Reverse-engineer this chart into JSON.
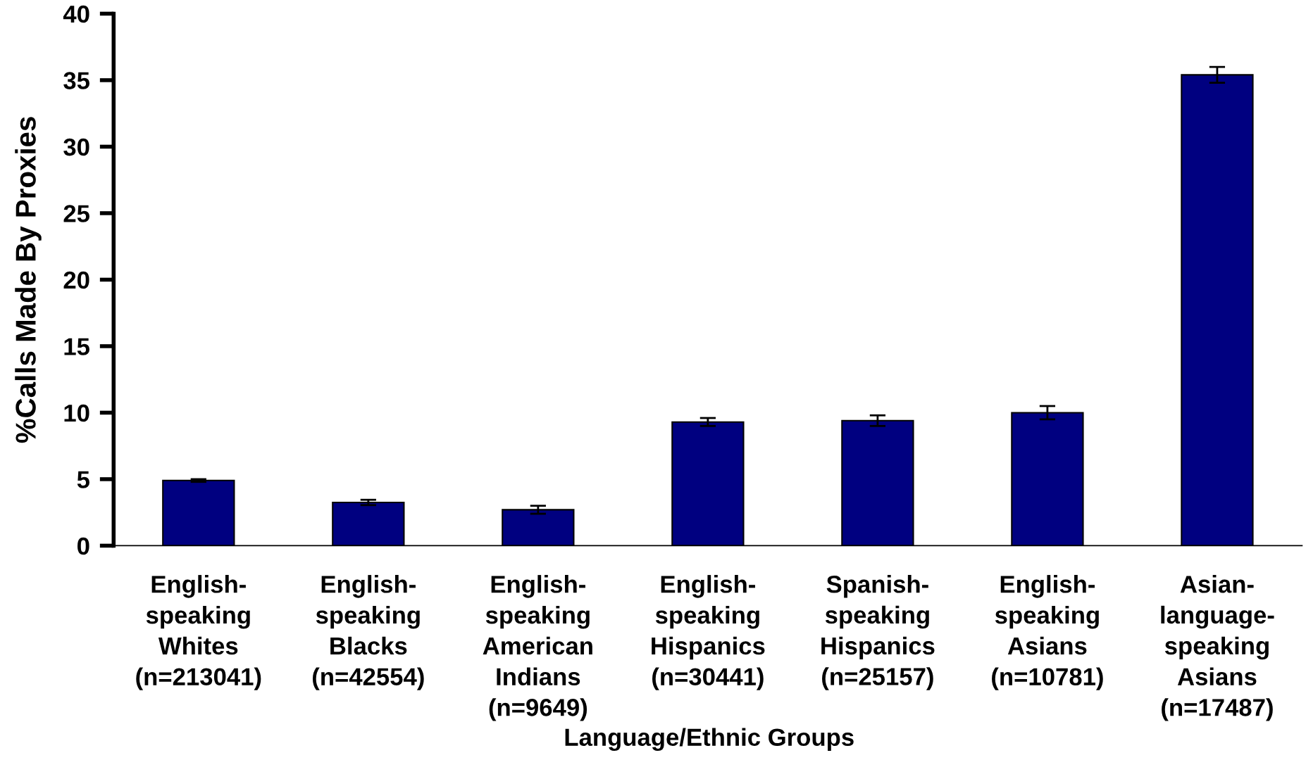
{
  "chart_data": {
    "type": "bar",
    "xlabel": "Language/Ethnic Groups",
    "ylabel": "%Calls Made By Proxies",
    "categories": [
      "English-\nspeaking\nWhites\n(n=213041)",
      "English-\nspeaking\nBlacks\n(n=42554)",
      "English-\nspeaking\nAmerican\nIndians\n(n=9649)",
      "English-\nspeaking\nHispanics\n(n=30441)",
      "Spanish-\nspeaking\nHispanics\n(n=25157)",
      "English-\nspeaking\nAsians\n(n=10781)",
      "Asian-\nlanguage-\nspeaking\nAsians\n(n=17487)"
    ],
    "values": [
      4.9,
      3.25,
      2.7,
      9.3,
      9.4,
      10.0,
      35.4
    ],
    "errors": [
      0.1,
      0.2,
      0.3,
      0.3,
      0.4,
      0.5,
      0.6
    ],
    "color": "#000080",
    "ylim": [
      0,
      40
    ],
    "yticks": [
      0,
      5,
      10,
      15,
      20,
      25,
      30,
      35,
      40
    ],
    "grid": false,
    "legend": false
  }
}
